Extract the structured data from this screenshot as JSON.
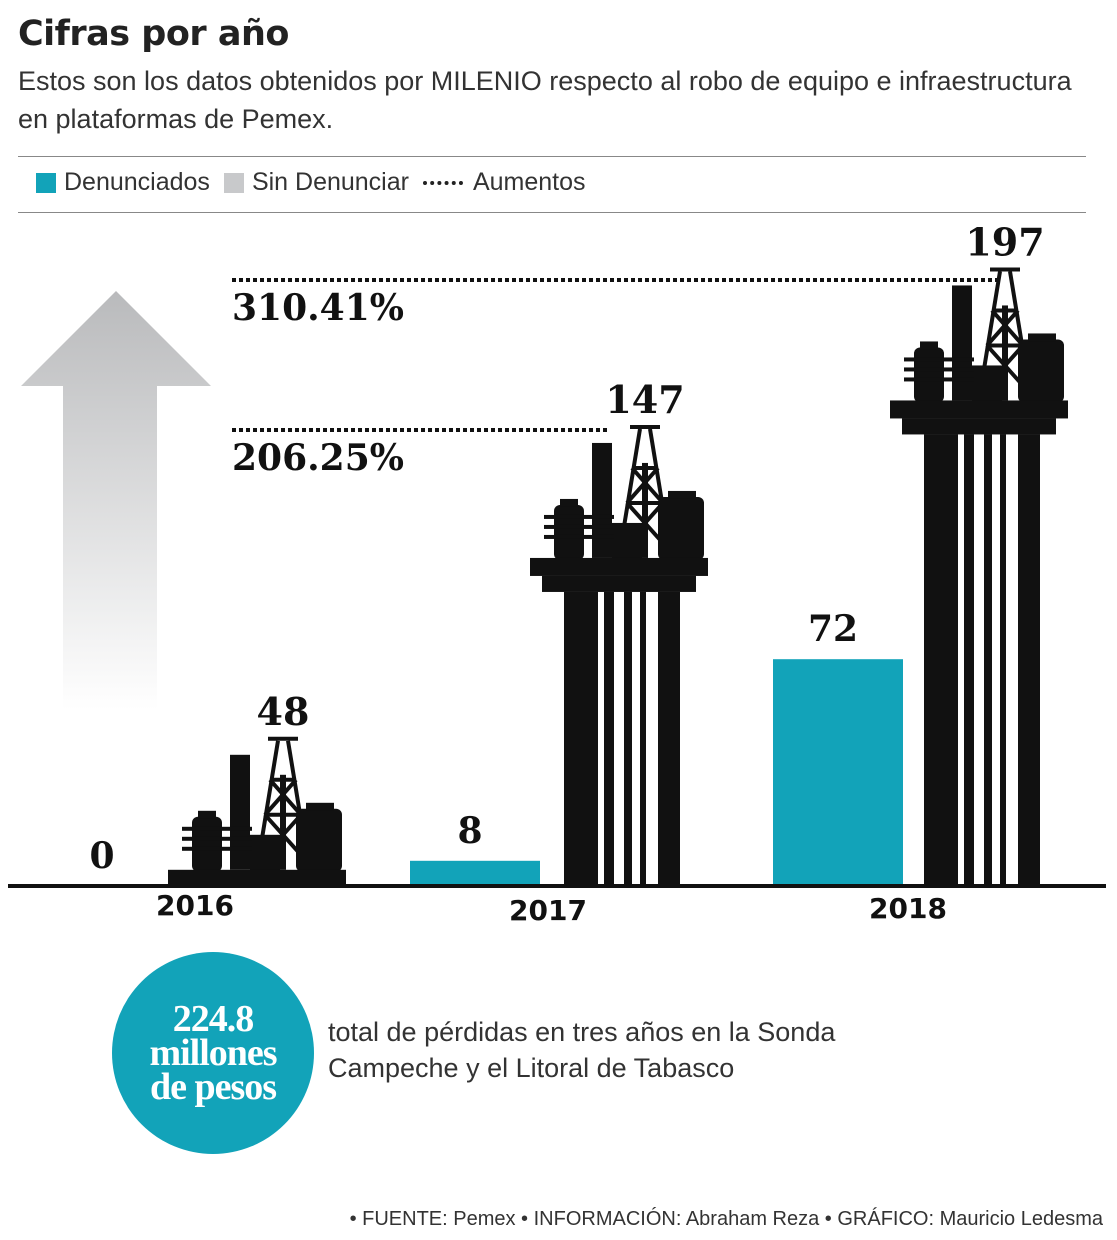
{
  "header": {
    "title": "Cifras por año",
    "subtitle": "Estos son los datos obtenidos por MILENIO respecto al robo de equipo e infraestructura en plataformas de Pemex."
  },
  "legend": [
    {
      "label": "Denunciados",
      "color": "#12a3b9",
      "symbol": "square"
    },
    {
      "label": "Sin Denunciar",
      "color": "#c8c9cb",
      "symbol": "square"
    },
    {
      "label": "Aumentos",
      "symbol": "dotted-line"
    }
  ],
  "chart_data": {
    "type": "bar",
    "categories": [
      "2016",
      "2017",
      "2018"
    ],
    "series": [
      {
        "name": "Denunciados",
        "values": [
          0,
          8,
          72
        ],
        "color": "#12a3b9"
      },
      {
        "name": "Sin Denunciar",
        "values": [
          48,
          147,
          197
        ],
        "color": "#111111",
        "mark": "oil-platform-icon"
      }
    ],
    "annotations": [
      {
        "label": "206.25%",
        "level": 147
      },
      {
        "label": "310.41%",
        "level": 197
      }
    ],
    "ylim": [
      0,
      210
    ],
    "grid": false,
    "legend_position": "top-left"
  },
  "summary": {
    "circle_lines": [
      "224.8",
      "millones",
      "de pesos"
    ],
    "circle_color": "#12a3b9",
    "note": "total de pérdidas en tres años en la Sonda Campeche y el Litoral de Tabasco"
  },
  "footer": "• FUENTE: Pemex • INFORMACIÓN: Abraham Reza • GRÁFICO: Mauricio Ledesma"
}
